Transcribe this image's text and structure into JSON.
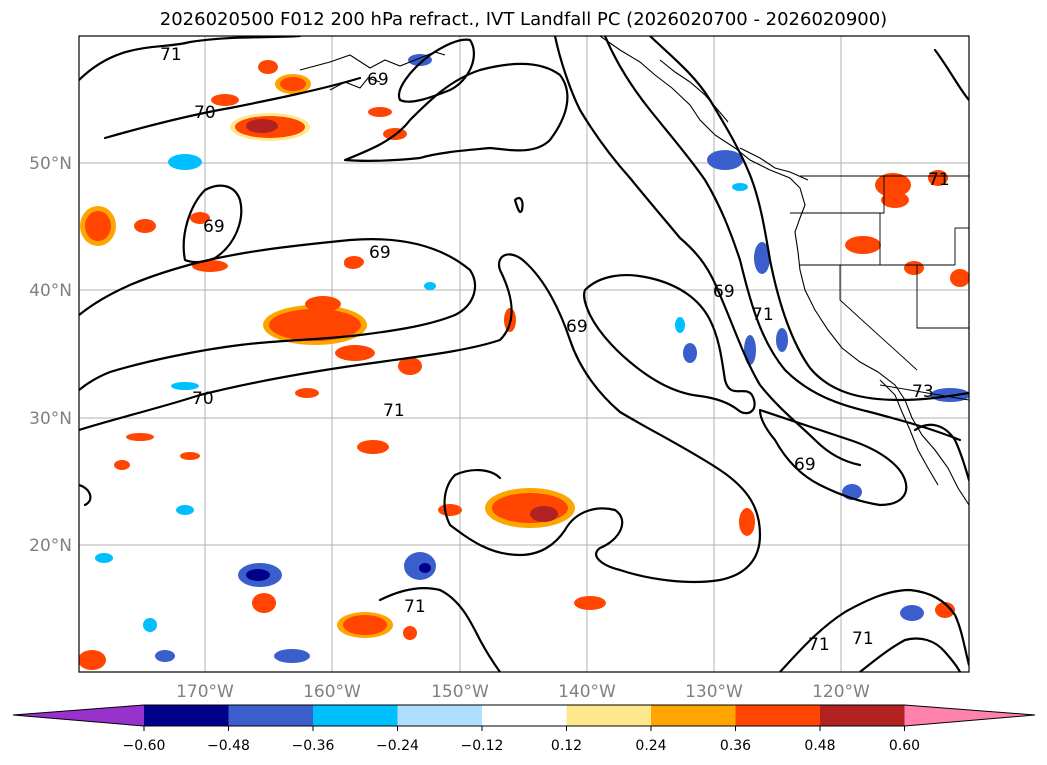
{
  "title": "2026020500 F012 200 hPa refract., IVT Landfall PC (2026020700 - 2026020900)",
  "map": {
    "lat_labels": [
      "50°N",
      "40°N",
      "30°N",
      "20°N"
    ],
    "lon_labels": [
      "170°W",
      "160°W",
      "150°W",
      "140°W",
      "130°W",
      "120°W"
    ],
    "contour_labels": [
      "71",
      "70",
      "69",
      "69",
      "69",
      "70",
      "71",
      "69",
      "69",
      "71",
      "73",
      "69",
      "71",
      "71",
      "71",
      "71"
    ]
  },
  "colorbar": {
    "colors": [
      "#9932cc",
      "#00008b",
      "#3a5fcd",
      "#00bfff",
      "#aedfff",
      "#ffffff",
      "#ffe88c",
      "#ffa500",
      "#ff4500",
      "#b22222",
      "#ff82ab"
    ],
    "ticks": [
      "−0.60",
      "−0.48",
      "−0.36",
      "−0.24",
      "−0.12",
      "0.12",
      "0.24",
      "0.36",
      "0.48",
      "0.60"
    ]
  },
  "chart_data": {
    "type": "contour-map",
    "title": "2026020500 F012 200 hPa refract., IVT Landfall PC (2026020700 - 2026020900)",
    "lon_range": [
      -180,
      -110
    ],
    "lat_range": [
      10,
      60
    ],
    "contour_levels": [
      69,
      70,
      71,
      73
    ],
    "shading_levels": [
      -0.6,
      -0.48,
      -0.36,
      -0.24,
      -0.12,
      0.12,
      0.24,
      0.36,
      0.48,
      0.6
    ]
  }
}
